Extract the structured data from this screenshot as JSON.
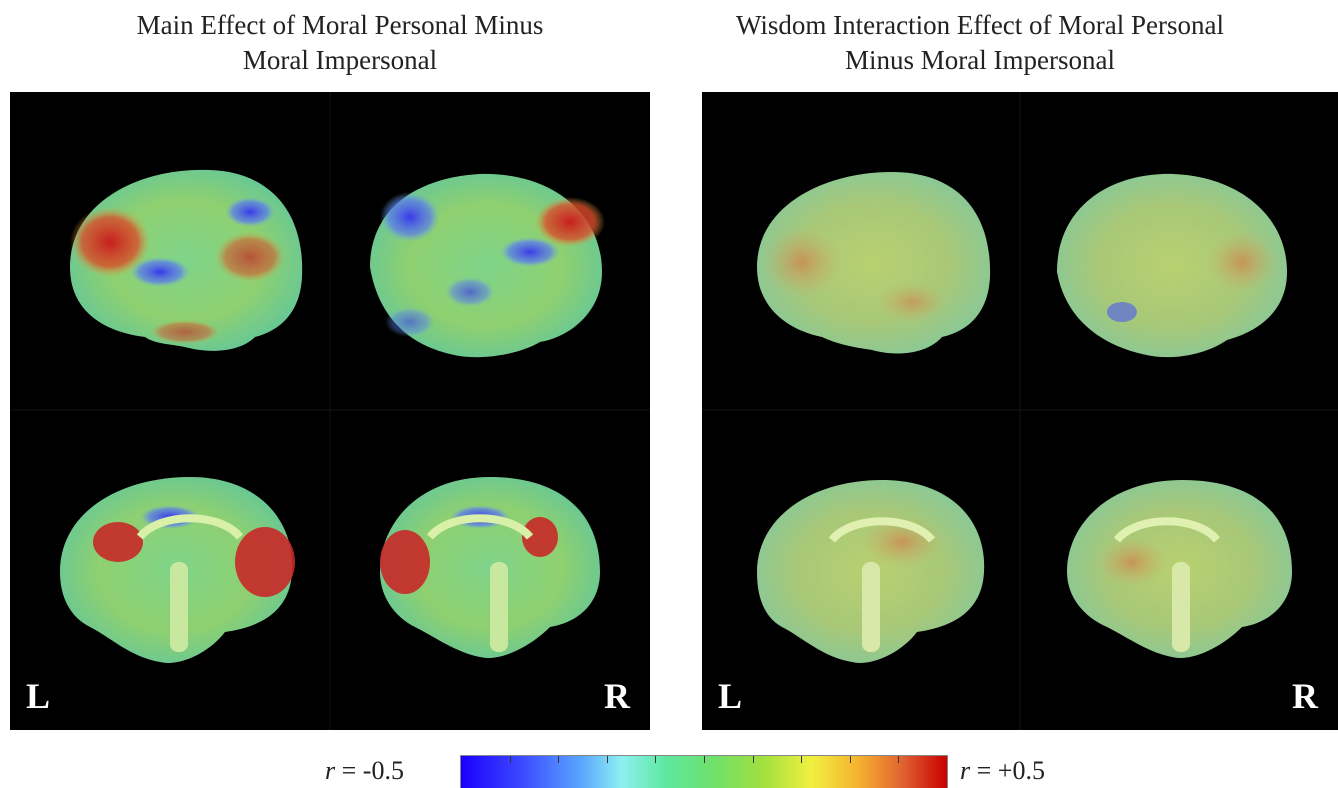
{
  "figure": {
    "left_title": "Main Effect of Moral Personal Minus\nMoral Impersonal",
    "right_title": "Wisdom Interaction Effect of Moral Personal\nMinus Moral Impersonal",
    "left_panel": {
      "left_label": "L",
      "right_label": "R"
    },
    "right_panel": {
      "left_label": "L",
      "right_label": "R"
    },
    "colorbar": {
      "min_prefix": "r",
      "min_value": " = -0.5",
      "max_prefix": "r",
      "max_value": " = +0.5",
      "colors": [
        "#1a00ff",
        "#5aa8ff",
        "#8ff0f0",
        "#6fe06a",
        "#f0f040",
        "#e06030",
        "#c80000"
      ]
    }
  }
}
